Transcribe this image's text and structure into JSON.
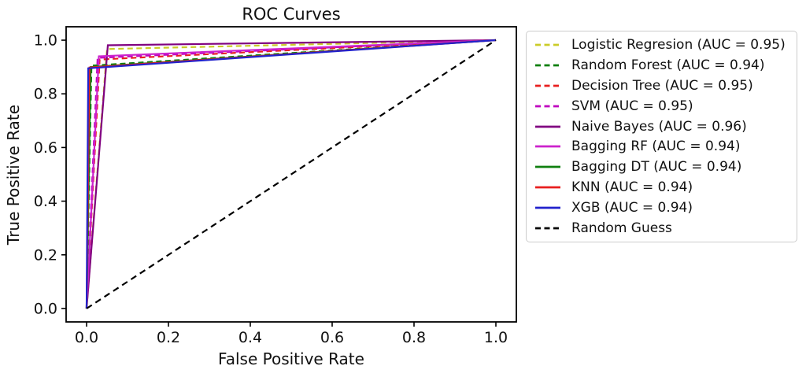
{
  "title": "ROC Curves",
  "chart_data": {
    "type": "line",
    "title": "ROC Curves",
    "xlabel": "False Positive Rate",
    "ylabel": "True Positive Rate",
    "xlim": [
      -0.05,
      1.05
    ],
    "ylim": [
      -0.05,
      1.05
    ],
    "grid": false,
    "legend_position": "outside-right",
    "xticks": {
      "values": [
        0.0,
        0.2,
        0.4,
        0.6,
        0.8,
        1.0
      ],
      "labels": [
        "0.0",
        "0.2",
        "0.4",
        "0.6",
        "0.8",
        "1.0"
      ]
    },
    "yticks": {
      "values": [
        0.0,
        0.2,
        0.4,
        0.6,
        0.8,
        1.0
      ],
      "labels": [
        "0.0",
        "0.2",
        "0.4",
        "0.6",
        "0.8",
        "1.0"
      ]
    },
    "series": [
      {
        "name": "Logistic Regresion (AUC = 0.95)",
        "auc": 0.95,
        "color": "#cbcc29",
        "dash": "dashed",
        "points": [
          [
            0,
            0
          ],
          [
            0.05,
            0.967
          ],
          [
            1,
            1
          ]
        ]
      },
      {
        "name": "Random Forest (AUC = 0.94)",
        "auc": 0.94,
        "color": "#0f7f0f",
        "dash": "dashed",
        "points": [
          [
            0,
            0
          ],
          [
            0.012,
            0.905
          ],
          [
            1,
            1
          ]
        ]
      },
      {
        "name": "Decision Tree (AUC = 0.95)",
        "auc": 0.95,
        "color": "#e81f1f",
        "dash": "dashed",
        "points": [
          [
            0,
            0
          ],
          [
            0.032,
            0.928
          ],
          [
            1,
            1
          ]
        ]
      },
      {
        "name": "SVM (AUC = 0.95)",
        "auc": 0.95,
        "color": "#bf00bf",
        "dash": "dashed",
        "points": [
          [
            0,
            0
          ],
          [
            0.027,
            0.934
          ],
          [
            1,
            1
          ]
        ]
      },
      {
        "name": "Naive Bayes (AUC = 0.96)",
        "auc": 0.96,
        "color": "#800080",
        "dash": "solid",
        "points": [
          [
            0,
            0
          ],
          [
            0.052,
            0.981
          ],
          [
            1,
            1
          ]
        ]
      },
      {
        "name": "Bagging RF (AUC = 0.94)",
        "auc": 0.94,
        "color": "#cc22cc",
        "dash": "solid",
        "points": [
          [
            0,
            0
          ],
          [
            0.03,
            0.94
          ],
          [
            1,
            1
          ]
        ]
      },
      {
        "name": "Bagging DT (AUC = 0.94)",
        "auc": 0.94,
        "color": "#0f7f0f",
        "dash": "solid",
        "points": [
          [
            0,
            0
          ],
          [
            0.01,
            0.9
          ],
          [
            1,
            1
          ]
        ]
      },
      {
        "name": "KNN (AUC = 0.94)",
        "auc": 0.94,
        "color": "#e81f1f",
        "dash": "solid",
        "points": [
          [
            0,
            0
          ],
          [
            0.007,
            0.898
          ],
          [
            1,
            1
          ]
        ]
      },
      {
        "name": "XGB (AUC = 0.94)",
        "auc": 0.94,
        "color": "#2222cc",
        "dash": "solid",
        "points": [
          [
            0,
            0
          ],
          [
            0.004,
            0.895
          ],
          [
            1,
            1
          ]
        ]
      },
      {
        "name": "Random Guess",
        "color": "#000000",
        "dash": "dashed-long",
        "points": [
          [
            0,
            0
          ],
          [
            1,
            1
          ]
        ]
      }
    ]
  }
}
